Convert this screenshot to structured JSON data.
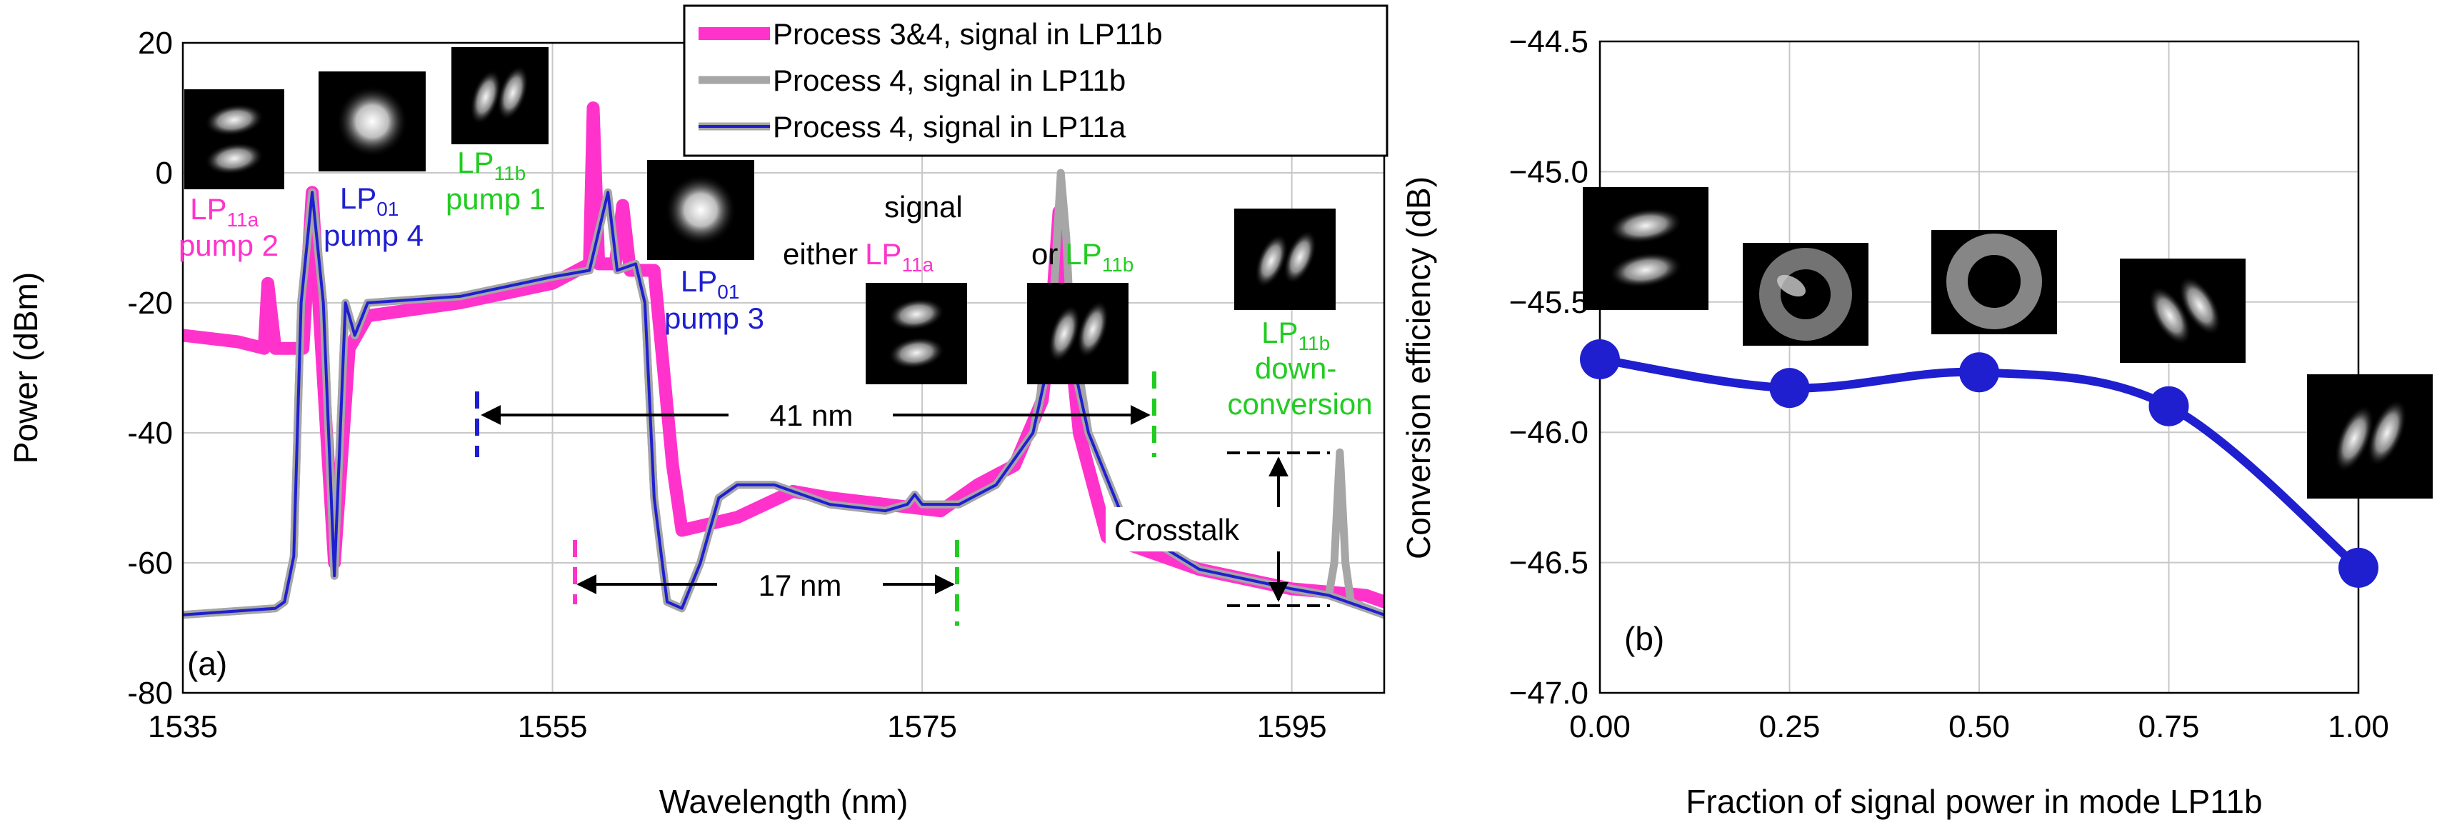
{
  "chart_data": [
    {
      "type": "line",
      "panel_label": "(a)",
      "xlabel": "Wavelength (nm)",
      "ylabel": "Power (dBm)",
      "xlim": [
        1535,
        1600
      ],
      "ylim": [
        -80,
        20
      ],
      "xticks": [
        1535,
        1555,
        1575,
        1595
      ],
      "yticks": [
        -80,
        -60,
        -40,
        -20,
        0,
        20
      ],
      "legend": [
        "Process 3&4, signal in LP11b",
        "Process 4, signal in LP11b",
        "Process 4, signal in LP11a"
      ],
      "colors": {
        "magenta": "#ff33cc",
        "gray": "#a6a6a6",
        "blue": "#1f1fd0",
        "green": "#22cc22"
      },
      "series": [
        {
          "name": "Process 3&4, signal in LP11b",
          "color": "#ff33cc",
          "width": 18,
          "points": [
            [
              1535,
              -25
            ],
            [
              1538,
              -26
            ],
            [
              1539.4,
              -27
            ],
            [
              1539.6,
              -17
            ],
            [
              1540,
              -27
            ],
            [
              1541.5,
              -27
            ],
            [
              1542,
              -3
            ],
            [
              1542.5,
              -27
            ],
            [
              1543.2,
              -60
            ],
            [
              1544,
              -27
            ],
            [
              1545,
              -22
            ],
            [
              1550,
              -20
            ],
            [
              1555,
              -17
            ],
            [
              1557,
              -14
            ],
            [
              1557.2,
              10
            ],
            [
              1557.5,
              -14
            ],
            [
              1558.4,
              -14
            ],
            [
              1558.8,
              -5
            ],
            [
              1559.2,
              -15
            ],
            [
              1560.5,
              -15
            ],
            [
              1561,
              -30
            ],
            [
              1561.5,
              -45
            ],
            [
              1562,
              -55
            ],
            [
              1565,
              -53
            ],
            [
              1568,
              -49
            ],
            [
              1570,
              -50
            ],
            [
              1573,
              -51
            ],
            [
              1576,
              -52
            ],
            [
              1578,
              -48
            ],
            [
              1580,
              -45
            ],
            [
              1581.5,
              -35
            ],
            [
              1582,
              -22
            ],
            [
              1582.4,
              -6
            ],
            [
              1582.8,
              -20
            ],
            [
              1583.5,
              -40
            ],
            [
              1585,
              -56
            ],
            [
              1590,
              -61
            ],
            [
              1595,
              -64
            ],
            [
              1599,
              -65
            ],
            [
              1600,
              -66
            ]
          ]
        },
        {
          "name": "Process 4, signal in LP11b",
          "color": "#a6a6a6",
          "width": 11,
          "points": [
            [
              1535,
              -68
            ],
            [
              1540,
              -67
            ],
            [
              1540.5,
              -66
            ],
            [
              1541,
              -59
            ],
            [
              1541.4,
              -20
            ],
            [
              1542,
              -3
            ],
            [
              1542.6,
              -20
            ],
            [
              1543.2,
              -62
            ],
            [
              1543.8,
              -20
            ],
            [
              1544.3,
              -25
            ],
            [
              1545,
              -20
            ],
            [
              1550,
              -19
            ],
            [
              1555,
              -16
            ],
            [
              1557,
              -15
            ],
            [
              1558,
              -3
            ],
            [
              1558.5,
              -15
            ],
            [
              1559.5,
              -14
            ],
            [
              1560,
              -20
            ],
            [
              1560.5,
              -50
            ],
            [
              1561.2,
              -66
            ],
            [
              1562,
              -67
            ],
            [
              1563,
              -60
            ],
            [
              1564,
              -50
            ],
            [
              1565,
              -48
            ],
            [
              1567,
              -48
            ],
            [
              1570,
              -51
            ],
            [
              1573,
              -52
            ],
            [
              1574.2,
              -51
            ],
            [
              1574.6,
              -49.5
            ],
            [
              1575,
              -51
            ],
            [
              1577,
              -51
            ],
            [
              1579,
              -48
            ],
            [
              1581,
              -40
            ],
            [
              1582,
              -25
            ],
            [
              1582.3,
              -10
            ],
            [
              1582.5,
              0
            ],
            [
              1582.8,
              -10
            ],
            [
              1583,
              -22
            ],
            [
              1584,
              -40
            ],
            [
              1586,
              -54
            ],
            [
              1590,
              -61
            ],
            [
              1595,
              -64
            ],
            [
              1597,
              -65
            ],
            [
              1597.3,
              -60
            ],
            [
              1597.6,
              -43
            ],
            [
              1597.9,
              -60
            ],
            [
              1598.2,
              -66
            ],
            [
              1600,
              -68
            ]
          ]
        },
        {
          "name": "Process 4, signal in LP11a",
          "color": "#1f1fd0",
          "width": 4,
          "points": [
            [
              1535,
              -68
            ],
            [
              1540,
              -67
            ],
            [
              1540.5,
              -66
            ],
            [
              1541,
              -59
            ],
            [
              1541.4,
              -20
            ],
            [
              1542,
              -3
            ],
            [
              1542.6,
              -20
            ],
            [
              1543.2,
              -62
            ],
            [
              1543.8,
              -20
            ],
            [
              1544.3,
              -25
            ],
            [
              1545,
              -20
            ],
            [
              1550,
              -19
            ],
            [
              1555,
              -16
            ],
            [
              1557,
              -15
            ],
            [
              1558,
              -3
            ],
            [
              1558.5,
              -15
            ],
            [
              1559.5,
              -14
            ],
            [
              1560,
              -20
            ],
            [
              1560.5,
              -50
            ],
            [
              1561.2,
              -66
            ],
            [
              1562,
              -67
            ],
            [
              1563,
              -60
            ],
            [
              1564,
              -50
            ],
            [
              1565,
              -48
            ],
            [
              1567,
              -48
            ],
            [
              1570,
              -51
            ],
            [
              1573,
              -52
            ],
            [
              1574.2,
              -51
            ],
            [
              1574.6,
              -49.5
            ],
            [
              1575,
              -51
            ],
            [
              1577,
              -51
            ],
            [
              1579,
              -48
            ],
            [
              1581,
              -40
            ],
            [
              1582,
              -27
            ],
            [
              1582.5,
              -19
            ],
            [
              1583,
              -27
            ],
            [
              1584,
              -40
            ],
            [
              1586,
              -54
            ],
            [
              1590,
              -61
            ],
            [
              1595,
              -64
            ],
            [
              1597,
              -65
            ],
            [
              1600,
              -68
            ]
          ]
        }
      ],
      "annotations": {
        "lp11a_pump2": {
          "sub": "11a",
          "line2": "pump 2"
        },
        "lp01_pump4": {
          "sub": "01",
          "line2": "pump 4"
        },
        "lp11b_pump1": {
          "sub": "11b",
          "line2": "pump 1"
        },
        "lp01_pump3": {
          "sub": "01",
          "line2": "pump 3"
        },
        "signal": "signal",
        "either": "either",
        "either_sub": "11a",
        "or": "or",
        "or_sub": "11b",
        "lp11b_down": {
          "sub": "11b",
          "line2": "down-",
          "line3": "conversion"
        },
        "lp_prefix": "LP",
        "crosstalk": "Crosstalk",
        "span41": "41 nm",
        "span17": "17 nm"
      }
    },
    {
      "type": "line",
      "panel_label": "(b)",
      "xlabel": "Fraction of signal power in mode LP11b",
      "ylabel": "Conversion efficiency (dB)",
      "xlim": [
        0,
        1
      ],
      "ylim": [
        -47.0,
        -44.5
      ],
      "xticks": [
        "0.00",
        "0.25",
        "0.50",
        "0.75",
        "1.00"
      ],
      "yticks": [
        "-47.0",
        "-46.5",
        "-46.0",
        "-45.5",
        "-45.0",
        "-44.5"
      ],
      "x": [
        0.0,
        0.25,
        0.5,
        0.75,
        1.0
      ],
      "y": [
        -45.72,
        -45.83,
        -45.77,
        -45.9,
        -46.52
      ],
      "color": "#1f1fd0"
    }
  ]
}
